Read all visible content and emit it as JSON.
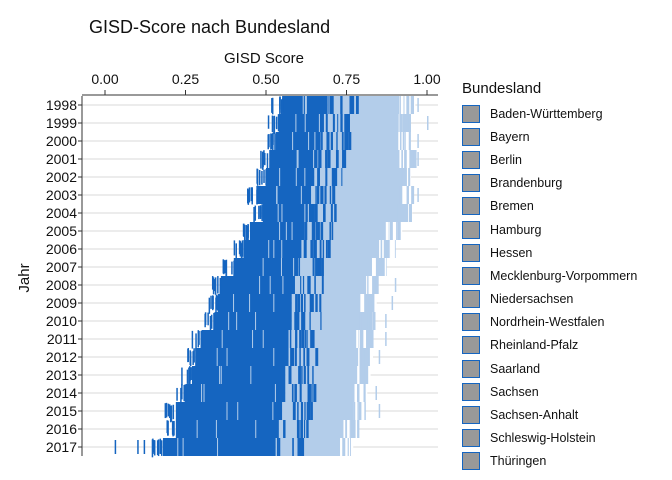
{
  "colors": {
    "dark": "#1565c0",
    "light": "#b3cdea",
    "grid": "#d9d9d9",
    "legend_key_fill": "#999999",
    "legend_key_border": "#1565c0"
  },
  "legend": {
    "title": "Bundesland",
    "items": [
      "Baden-Württemberg",
      "Bayern",
      "Berlin",
      "Brandenburg",
      "Bremen",
      "Hamburg",
      "Hessen",
      "Mecklenburg-Vorpommern",
      "Niedersachsen",
      "Nordrhein-Westfalen",
      "Rheinland-Pfalz",
      "Saarland",
      "Sachsen",
      "Sachsen-Anhalt",
      "Schleswig-Holstein",
      "Thüringen"
    ]
  },
  "chart_data": {
    "type": "bar",
    "title": "GISD-Score nach Bundesland",
    "xlabel": "GISD Score",
    "ylabel": "Jahr",
    "x_axis_position": "top",
    "xlim": [
      0,
      1.03
    ],
    "xticks": [
      0,
      0.25,
      0.5,
      0.75,
      1
    ],
    "xtick_labels": [
      "0.00",
      "0.25",
      "0.50",
      "0.75",
      "1.00"
    ],
    "grid": "horizontal",
    "legend_position": "right",
    "categories": [
      "1998",
      "1999",
      "2000",
      "2001",
      "2002",
      "2003",
      "2004",
      "2005",
      "2006",
      "2007",
      "2008",
      "2009",
      "2010",
      "2011",
      "2012",
      "2013",
      "2014",
      "2015",
      "2016",
      "2017"
    ],
    "ranges": [
      {
        "year": "1998",
        "dark_start": 0.55,
        "dark_end": 0.69,
        "light_end": 0.96,
        "outliers": [
          0.97
        ]
      },
      {
        "year": "1999",
        "dark_start": 0.54,
        "dark_end": 0.68,
        "light_end": 0.95,
        "outliers": [
          1.0
        ]
      },
      {
        "year": "2000",
        "dark_start": 0.53,
        "dark_end": 0.67,
        "light_end": 0.95,
        "outliers": [
          0.97
        ]
      },
      {
        "year": "2001",
        "dark_start": 0.51,
        "dark_end": 0.66,
        "light_end": 0.96,
        "outliers": [
          0.97
        ]
      },
      {
        "year": "2002",
        "dark_start": 0.5,
        "dark_end": 0.65,
        "light_end": 0.95,
        "outliers": []
      },
      {
        "year": "2003",
        "dark_start": 0.47,
        "dark_end": 0.64,
        "light_end": 0.96,
        "outliers": [
          0.97
        ]
      },
      {
        "year": "2004",
        "dark_start": 0.49,
        "dark_end": 0.63,
        "light_end": 0.95,
        "outliers": []
      },
      {
        "year": "2005",
        "dark_start": 0.45,
        "dark_end": 0.62,
        "light_end": 0.92,
        "outliers": []
      },
      {
        "year": "2006",
        "dark_start": 0.43,
        "dark_end": 0.61,
        "light_end": 0.9,
        "outliers": []
      },
      {
        "year": "2007",
        "dark_start": 0.4,
        "dark_end": 0.6,
        "light_end": 0.87,
        "outliers": []
      },
      {
        "year": "2008",
        "dark_start": 0.36,
        "dark_end": 0.59,
        "light_end": 0.85,
        "outliers": [
          0.9
        ]
      },
      {
        "year": "2009",
        "dark_start": 0.35,
        "dark_end": 0.58,
        "light_end": 0.84,
        "outliers": [
          0.89
        ]
      },
      {
        "year": "2010",
        "dark_start": 0.34,
        "dark_end": 0.58,
        "light_end": 0.84,
        "outliers": [
          0.87
        ]
      },
      {
        "year": "2011",
        "dark_start": 0.3,
        "dark_end": 0.57,
        "light_end": 0.83,
        "outliers": [
          0.87
        ]
      },
      {
        "year": "2012",
        "dark_start": 0.28,
        "dark_end": 0.57,
        "light_end": 0.83,
        "outliers": [
          0.85
        ]
      },
      {
        "year": "2013",
        "dark_start": 0.27,
        "dark_end": 0.56,
        "light_end": 0.82,
        "outliers": []
      },
      {
        "year": "2014",
        "dark_start": 0.25,
        "dark_end": 0.56,
        "light_end": 0.81,
        "outliers": [
          0.84
        ]
      },
      {
        "year": "2015",
        "dark_start": 0.22,
        "dark_end": 0.55,
        "light_end": 0.81,
        "outliers": [
          0.85
        ]
      },
      {
        "year": "2016",
        "dark_start": 0.22,
        "dark_end": 0.54,
        "light_end": 0.79,
        "outliers": []
      },
      {
        "year": "2017",
        "dark_start": 0.18,
        "dark_end": 0.53,
        "light_end": 0.77,
        "outliers": [
          0.03,
          0.1,
          0.12,
          0.15,
          0.17
        ]
      }
    ]
  }
}
